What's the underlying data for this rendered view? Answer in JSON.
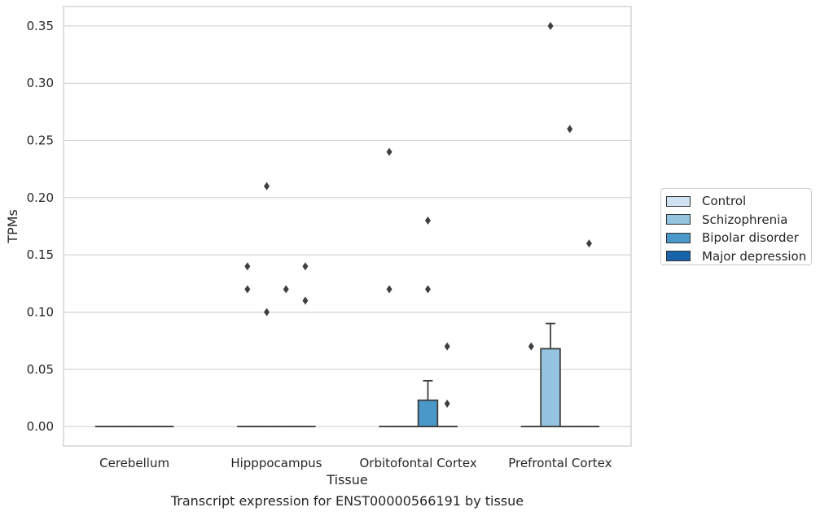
{
  "chart_data": {
    "type": "box",
    "title": "",
    "caption": "Transcript expression for ENST00000566191 by tissue",
    "xlabel": "Tissue",
    "ylabel": "TPMs",
    "ylim": [
      -0.017,
      0.367
    ],
    "yticks": [
      "0.00",
      "0.05",
      "0.10",
      "0.15",
      "0.20",
      "0.25",
      "0.30",
      "0.35"
    ],
    "grid": "horizontal",
    "legend_position": "right",
    "categories": [
      "Cerebellum",
      "Hipppocampus",
      "Orbitofontal Cortex",
      "Prefrontal Cortex"
    ],
    "series": [
      {
        "name": "Control",
        "color": "#d0e1f2",
        "boxes": [
          {
            "q1": 0,
            "median": 0,
            "q3": 0,
            "whislo": 0,
            "whishi": 0,
            "fliers": []
          },
          {
            "q1": 0,
            "median": 0,
            "q3": 0,
            "whislo": 0,
            "whishi": 0,
            "fliers": [
              0.14,
              0.12
            ]
          },
          {
            "q1": 0,
            "median": 0,
            "q3": 0,
            "whislo": 0,
            "whishi": 0,
            "fliers": [
              0.24,
              0.12
            ]
          },
          {
            "q1": 0,
            "median": 0,
            "q3": 0,
            "whislo": 0,
            "whishi": 0,
            "fliers": [
              0.07
            ]
          }
        ]
      },
      {
        "name": "Schizophrenia",
        "color": "#94c4df",
        "boxes": [
          {
            "q1": 0,
            "median": 0,
            "q3": 0,
            "whislo": 0,
            "whishi": 0,
            "fliers": []
          },
          {
            "q1": 0,
            "median": 0,
            "q3": 0,
            "whislo": 0,
            "whishi": 0,
            "fliers": [
              0.21,
              0.1
            ]
          },
          {
            "q1": 0,
            "median": 0,
            "q3": 0,
            "whislo": 0,
            "whishi": 0,
            "fliers": []
          },
          {
            "q1": 0,
            "median": 0,
            "q3": 0.068,
            "whislo": 0,
            "whishi": 0.09,
            "fliers": [
              0.35
            ]
          }
        ]
      },
      {
        "name": "Bipolar disorder",
        "color": "#4a98c9",
        "boxes": [
          {
            "q1": 0,
            "median": 0,
            "q3": 0,
            "whislo": 0,
            "whishi": 0,
            "fliers": []
          },
          {
            "q1": 0,
            "median": 0,
            "q3": 0,
            "whislo": 0,
            "whishi": 0,
            "fliers": [
              0.12
            ]
          },
          {
            "q1": 0,
            "median": 0,
            "q3": 0.023,
            "whislo": 0,
            "whishi": 0.04,
            "fliers": [
              0.18,
              0.12
            ]
          },
          {
            "q1": 0,
            "median": 0,
            "q3": 0,
            "whislo": 0,
            "whishi": 0,
            "fliers": [
              0.26
            ]
          }
        ]
      },
      {
        "name": "Major depression",
        "color": "#1764ab",
        "boxes": [
          {
            "q1": 0,
            "median": 0,
            "q3": 0,
            "whislo": 0,
            "whishi": 0,
            "fliers": []
          },
          {
            "q1": 0,
            "median": 0,
            "q3": 0,
            "whislo": 0,
            "whishi": 0,
            "fliers": [
              0.14,
              0.11
            ]
          },
          {
            "q1": 0,
            "median": 0,
            "q3": 0,
            "whislo": 0,
            "whishi": 0,
            "fliers": [
              0.07,
              0.02
            ]
          },
          {
            "q1": 0,
            "median": 0,
            "q3": 0,
            "whislo": 0,
            "whishi": 0,
            "fliers": [
              0.16
            ]
          }
        ]
      }
    ]
  }
}
